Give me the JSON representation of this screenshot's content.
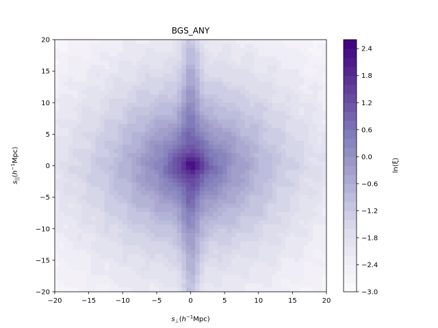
{
  "chart_data": {
    "type": "heatmap",
    "title": "BGS_ANY",
    "xlabel": "s⊥(h⁻¹Mpc)",
    "ylabel": "s||(h⁻¹Mpc)",
    "xlim": [
      -20,
      20
    ],
    "ylim": [
      -20,
      20
    ],
    "x_ticks": [
      "−20",
      "−15",
      "−10",
      "−5",
      "0",
      "5",
      "10",
      "15",
      "20"
    ],
    "y_ticks": [
      "20",
      "15",
      "10",
      "5",
      "0",
      "−5",
      "−10",
      "−15",
      "−20"
    ],
    "colorbar": {
      "label": "ln(ξ)",
      "range": [
        -3.0,
        2.6
      ],
      "ticks": [
        "2.4",
        "1.8",
        "1.2",
        "0.6",
        "0.0",
        "−0.6",
        "−1.2",
        "−1.8",
        "−2.4",
        "−3.0"
      ],
      "tick_values": [
        2.4,
        1.8,
        1.2,
        0.6,
        0.0,
        -0.6,
        -1.2,
        -1.8,
        -2.4,
        -3.0
      ],
      "levels": 28,
      "colormap": "Purples",
      "color_low": "#fcfbfd",
      "color_high": "#3f007d"
    },
    "grid": false
  }
}
